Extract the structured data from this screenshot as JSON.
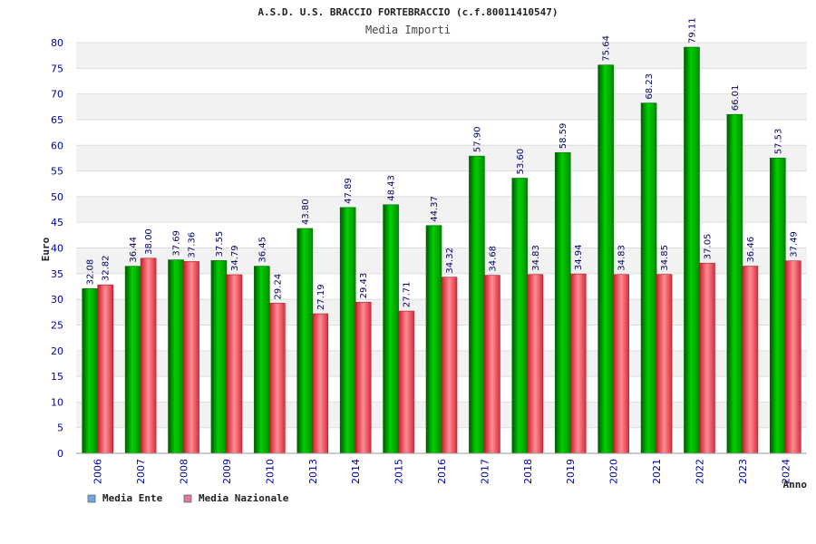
{
  "chart_data": {
    "type": "bar",
    "title": "A.S.D. U.S. BRACCIO FORTEBRACCIO (c.f.80011410547)",
    "subtitle": "Media Importi",
    "ylabel": "Euro",
    "xlabel": "Anno",
    "ylim": [
      0,
      80
    ],
    "yticks": [
      0,
      5,
      10,
      15,
      20,
      25,
      30,
      35,
      40,
      45,
      50,
      55,
      60,
      65,
      70,
      75,
      80
    ],
    "grid": true,
    "legend_position": "bottom-left",
    "categories": [
      "2006",
      "2007",
      "2008",
      "2009",
      "2010",
      "2013",
      "2014",
      "2015",
      "2016",
      "2017",
      "2018",
      "2019",
      "2020",
      "2021",
      "2022",
      "2023",
      "2024"
    ],
    "series": [
      {
        "name": "Media Ente",
        "color": "#00a000",
        "legend_color": "#6fa8e8",
        "values": [
          32.08,
          36.44,
          37.69,
          37.55,
          36.45,
          43.8,
          47.89,
          48.43,
          44.37,
          57.9,
          53.6,
          58.59,
          75.64,
          68.23,
          79.11,
          66.01,
          57.53
        ],
        "labels": [
          "32.08",
          "36.44",
          "37.69",
          "37.55",
          "36.45",
          "43.80",
          "47.89",
          "48.43",
          "44.37",
          "57.90",
          "53.60",
          "58.59",
          "75.64",
          "68.23",
          "79.11",
          "66.01",
          "57.53"
        ]
      },
      {
        "name": "Media Nazionale",
        "color": "#e83a4a",
        "legend_color": "#e07aa0",
        "values": [
          32.82,
          38.0,
          37.36,
          34.79,
          29.24,
          27.19,
          29.43,
          27.71,
          34.32,
          34.68,
          34.83,
          34.94,
          34.83,
          34.85,
          37.05,
          36.46,
          37.49
        ],
        "labels": [
          "32.82",
          "38.00",
          "37.36",
          "34.79",
          "29.24",
          "27.19",
          "29.43",
          "27.71",
          "34.32",
          "34.68",
          "34.83",
          "34.94",
          "34.83",
          "34.85",
          "37.05",
          "36.46",
          "37.49"
        ]
      }
    ]
  }
}
